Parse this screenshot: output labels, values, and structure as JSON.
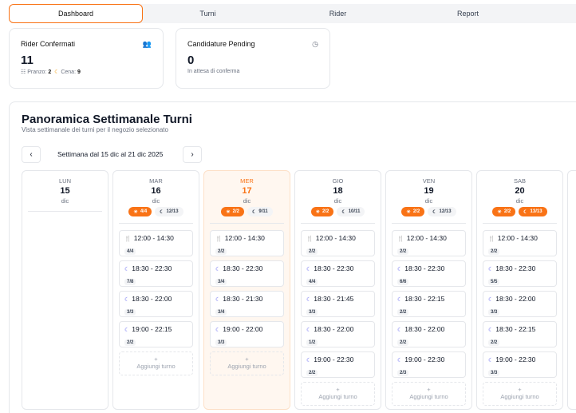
{
  "tabs": [
    "Dashboard",
    "Turni",
    "Rider",
    "Report"
  ],
  "stats": {
    "rider": {
      "title": "Rider Confermati",
      "value": "11",
      "lunch_label": "Pranzo:",
      "lunch": "2",
      "dinner_label": "Cena:",
      "dinner": "9"
    },
    "pending": {
      "title": "Candidature Pending",
      "value": "0",
      "sub": "In attesa di conferma"
    }
  },
  "panel": {
    "title": "Panoramica Settimanale Turni",
    "subtitle": "Vista settimanale dei turni per il negozio selezionato",
    "week": "Settimana dal 15 dic al 21 dic 2025",
    "add_label": "Aggiungi turno"
  },
  "colors": {
    "accent": "#f97316",
    "dinner_icon": "#6366f1"
  },
  "days": [
    {
      "name": "LUN",
      "num": "15",
      "month": "dic",
      "badges": [],
      "shifts": [],
      "today": false
    },
    {
      "name": "MAR",
      "num": "16",
      "month": "dic",
      "today": false,
      "badges": [
        {
          "t": "4/4",
          "full": true,
          "icon": "sun"
        },
        {
          "t": "12/13",
          "full": false,
          "icon": "moon"
        }
      ],
      "shifts": [
        {
          "type": "lunch",
          "time": "12:00 - 14:30",
          "count": "4/4"
        },
        {
          "type": "dinner",
          "time": "18:30 - 22:30",
          "count": "7/8"
        },
        {
          "type": "dinner",
          "time": "18:30 - 22:00",
          "count": "3/3"
        },
        {
          "type": "dinner",
          "time": "19:00 - 22:15",
          "count": "2/2"
        }
      ]
    },
    {
      "name": "MER",
      "num": "17",
      "month": "dic",
      "today": true,
      "badges": [
        {
          "t": "2/2",
          "full": true,
          "icon": "sun"
        },
        {
          "t": "9/11",
          "full": false,
          "icon": "moon"
        }
      ],
      "shifts": [
        {
          "type": "lunch",
          "time": "12:00 - 14:30",
          "count": "2/2"
        },
        {
          "type": "dinner",
          "time": "18:30 - 22:30",
          "count": "3/4"
        },
        {
          "type": "dinner",
          "time": "18:30 - 21:30",
          "count": "3/4"
        },
        {
          "type": "dinner",
          "time": "19:00 - 22:00",
          "count": "3/3"
        }
      ]
    },
    {
      "name": "GIO",
      "num": "18",
      "month": "dic",
      "today": false,
      "badges": [
        {
          "t": "2/2",
          "full": true,
          "icon": "sun"
        },
        {
          "t": "10/11",
          "full": false,
          "icon": "moon"
        }
      ],
      "shifts": [
        {
          "type": "lunch",
          "time": "12:00 - 14:30",
          "count": "2/2"
        },
        {
          "type": "dinner",
          "time": "18:30 - 22:30",
          "count": "4/4"
        },
        {
          "type": "dinner",
          "time": "18:30 - 21:45",
          "count": "3/3"
        },
        {
          "type": "dinner",
          "time": "18:30 - 22:00",
          "count": "1/2"
        },
        {
          "type": "dinner",
          "time": "19:00 - 22:30",
          "count": "2/2"
        }
      ]
    },
    {
      "name": "VEN",
      "num": "19",
      "month": "dic",
      "today": false,
      "badges": [
        {
          "t": "2/2",
          "full": true,
          "icon": "sun"
        },
        {
          "t": "12/13",
          "full": false,
          "icon": "moon"
        }
      ],
      "shifts": [
        {
          "type": "lunch",
          "time": "12:00 - 14:30",
          "count": "2/2"
        },
        {
          "type": "dinner",
          "time": "18:30 - 22:30",
          "count": "6/6"
        },
        {
          "type": "dinner",
          "time": "18:30 - 22:15",
          "count": "2/2"
        },
        {
          "type": "dinner",
          "time": "18:30 - 22:00",
          "count": "2/2"
        },
        {
          "type": "dinner",
          "time": "19:00 - 22:30",
          "count": "2/3"
        }
      ]
    },
    {
      "name": "SAB",
      "num": "20",
      "month": "dic",
      "today": false,
      "badges": [
        {
          "t": "2/2",
          "full": true,
          "icon": "sun"
        },
        {
          "t": "13/13",
          "full": true,
          "icon": "moon"
        }
      ],
      "shifts": [
        {
          "type": "lunch",
          "time": "12:00 - 14:30",
          "count": "2/2"
        },
        {
          "type": "dinner",
          "time": "18:30 - 22:30",
          "count": "5/5"
        },
        {
          "type": "dinner",
          "time": "18:30 - 22:00",
          "count": "3/3"
        },
        {
          "type": "dinner",
          "time": "18:30 - 22:15",
          "count": "2/2"
        },
        {
          "type": "dinner",
          "time": "19:00 - 22:30",
          "count": "3/3"
        }
      ]
    }
  ]
}
